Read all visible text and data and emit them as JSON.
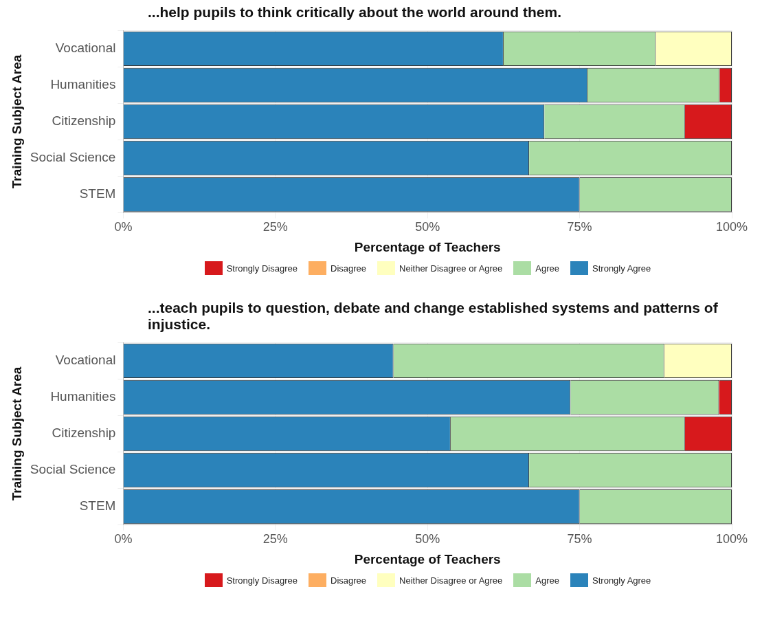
{
  "chart_data": [
    {
      "type": "bar",
      "orientation": "horizontal",
      "stacked": true,
      "title": "...help pupils to think critically about the world around them.",
      "xlabel": "Percentage of Teachers",
      "ylabel": "Training Subject Area",
      "categories": [
        "Vocational",
        "Humanities",
        "Citizenship",
        "Social Science",
        "STEM"
      ],
      "xlim": [
        0,
        100
      ],
      "xticks": [
        {
          "value": 0,
          "label": "0%"
        },
        {
          "value": 25,
          "label": "25%"
        },
        {
          "value": 50,
          "label": "50%"
        },
        {
          "value": 75,
          "label": "75%"
        },
        {
          "value": 100,
          "label": "100%"
        }
      ],
      "grid": true,
      "legend": "bottom",
      "series": [
        {
          "name": "Strongly Agree",
          "color": "#2b83ba",
          "values": [
            62.5,
            76.3,
            69.2,
            66.7,
            75
          ]
        },
        {
          "name": "Agree",
          "color": "#abdda4",
          "values": [
            25,
            21.7,
            23.1,
            33.3,
            25
          ]
        },
        {
          "name": "Neither Disagree or Agree",
          "color": "#ffffbf",
          "values": [
            12.5,
            0,
            0,
            0,
            0
          ]
        },
        {
          "name": "Disagree",
          "color": "#fdae61",
          "values": [
            0,
            0,
            0,
            0,
            0
          ]
        },
        {
          "name": "Strongly Disagree",
          "color": "#d7191c",
          "values": [
            0,
            2,
            7.7,
            0,
            0
          ]
        }
      ]
    },
    {
      "type": "bar",
      "orientation": "horizontal",
      "stacked": true,
      "title": "...teach pupils to question, debate and change established systems and patterns of injustice.",
      "xlabel": "Percentage of Teachers",
      "ylabel": "Training Subject Area",
      "categories": [
        "Vocational",
        "Humanities",
        "Citizenship",
        "Social Science",
        "STEM"
      ],
      "xlim": [
        0,
        100
      ],
      "xticks": [
        {
          "value": 0,
          "label": "0%"
        },
        {
          "value": 25,
          "label": "25%"
        },
        {
          "value": 50,
          "label": "50%"
        },
        {
          "value": 75,
          "label": "75%"
        },
        {
          "value": 100,
          "label": "100%"
        }
      ],
      "grid": true,
      "legend": "bottom",
      "series": [
        {
          "name": "Strongly Agree",
          "color": "#2b83ba",
          "values": [
            44.4,
            73.5,
            53.8,
            66.7,
            75
          ]
        },
        {
          "name": "Agree",
          "color": "#abdda4",
          "values": [
            44.5,
            24.4,
            38.5,
            33.3,
            25
          ]
        },
        {
          "name": "Neither Disagree or Agree",
          "color": "#ffffbf",
          "values": [
            11.1,
            0,
            0,
            0,
            0
          ]
        },
        {
          "name": "Disagree",
          "color": "#fdae61",
          "values": [
            0,
            0,
            0,
            0,
            0
          ]
        },
        {
          "name": "Strongly Disagree",
          "color": "#d7191c",
          "values": [
            0,
            2.1,
            7.7,
            0,
            0
          ]
        }
      ]
    }
  ]
}
